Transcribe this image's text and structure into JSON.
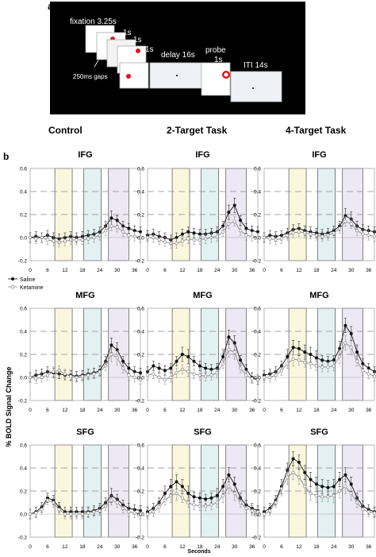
{
  "panel_a": {
    "letter": "a",
    "labels": {
      "fixation": "fixation 3.25s",
      "s1a": "1s",
      "s1b": "1s",
      "s1c": "1s",
      "delay": "delay 16s",
      "probe": "probe",
      "probe_s": "1s",
      "iti": "ITI 14s",
      "gaps": "250ms gaps"
    },
    "conditions": [
      "Control",
      "2-Target Task",
      "4-Target Task"
    ]
  },
  "panel_b": {
    "letter": "b",
    "ylabel": "% BOLD Signal Change",
    "xlabel": "Seconds",
    "legend": [
      "Saline",
      "Ketamine"
    ],
    "yticks": [
      "0.6",
      "0.4",
      "0.2",
      "0.0",
      "-0.2"
    ],
    "xticks": [
      "0",
      "6",
      "12",
      "18",
      "24",
      "30",
      "36"
    ],
    "colors": {
      "yellow": "#fbf7df",
      "teal": "#e3f1f2",
      "lavender": "#ece8f4",
      "saline": "#111111",
      "ketamine": "#888888"
    }
  },
  "chart_data": [
    {
      "type": "line",
      "title": "IFG",
      "column": "Control",
      "x": [
        0,
        2,
        4,
        6,
        8,
        10,
        12,
        14,
        16,
        18,
        20,
        22,
        24,
        26,
        28,
        30,
        32,
        34,
        36,
        38
      ],
      "ylim": [
        -0.2,
        0.6
      ],
      "series": [
        {
          "name": "Saline",
          "values": [
            0.0,
            0.01,
            0.0,
            0.02,
            0.0,
            -0.01,
            0.0,
            0.01,
            0.0,
            0.01,
            0.02,
            0.03,
            0.05,
            0.1,
            0.17,
            0.15,
            0.1,
            0.08,
            0.06,
            0.05
          ]
        },
        {
          "name": "Ketamine",
          "values": [
            0.0,
            -0.01,
            0.0,
            -0.02,
            -0.03,
            -0.04,
            -0.03,
            -0.02,
            -0.02,
            -0.02,
            -0.01,
            0.0,
            0.02,
            0.06,
            0.1,
            0.09,
            0.05,
            0.02,
            0.01,
            0.0
          ]
        }
      ]
    },
    {
      "type": "line",
      "title": "IFG",
      "column": "2-Target Task",
      "x": [
        0,
        2,
        4,
        6,
        8,
        10,
        12,
        14,
        16,
        18,
        20,
        22,
        24,
        26,
        28,
        30,
        32,
        34,
        36,
        38
      ],
      "ylim": [
        -0.2,
        0.6
      ],
      "series": [
        {
          "name": "Saline",
          "values": [
            0.02,
            0.03,
            0.01,
            0.0,
            -0.02,
            0.0,
            0.03,
            0.05,
            0.04,
            0.03,
            0.03,
            0.04,
            0.05,
            0.1,
            0.22,
            0.28,
            0.15,
            0.08,
            0.06,
            0.05
          ]
        },
        {
          "name": "Ketamine",
          "values": [
            0.0,
            0.0,
            -0.02,
            -0.04,
            -0.05,
            -0.05,
            -0.03,
            -0.01,
            -0.02,
            -0.02,
            -0.01,
            0.0,
            0.01,
            0.05,
            0.12,
            0.14,
            0.06,
            0.02,
            0.01,
            0.0
          ]
        }
      ]
    },
    {
      "type": "line",
      "title": "IFG",
      "column": "4-Target Task",
      "x": [
        0,
        2,
        4,
        6,
        8,
        10,
        12,
        14,
        16,
        18,
        20,
        22,
        24,
        26,
        28,
        30,
        32,
        34,
        36,
        38
      ],
      "ylim": [
        -0.2,
        0.6
      ],
      "series": [
        {
          "name": "Saline",
          "values": [
            0.0,
            0.02,
            0.01,
            0.02,
            0.04,
            0.07,
            0.08,
            0.06,
            0.05,
            0.04,
            0.03,
            0.04,
            0.06,
            0.1,
            0.19,
            0.16,
            0.1,
            0.07,
            0.06,
            0.05
          ]
        },
        {
          "name": "Ketamine",
          "values": [
            0.0,
            -0.01,
            -0.02,
            -0.01,
            0.02,
            0.04,
            0.05,
            0.04,
            0.03,
            0.02,
            0.01,
            0.02,
            0.04,
            0.08,
            0.14,
            0.12,
            0.06,
            0.03,
            0.02,
            0.01
          ]
        }
      ]
    },
    {
      "type": "line",
      "title": "MFG",
      "column": "Control",
      "x": [
        0,
        2,
        4,
        6,
        8,
        10,
        12,
        14,
        16,
        18,
        20,
        22,
        24,
        26,
        28,
        30,
        32,
        34,
        36,
        38
      ],
      "ylim": [
        -0.2,
        0.6
      ],
      "series": [
        {
          "name": "Saline",
          "values": [
            0.0,
            0.02,
            0.03,
            0.05,
            0.04,
            0.03,
            0.02,
            0.02,
            0.01,
            0.02,
            0.03,
            0.04,
            0.06,
            0.14,
            0.28,
            0.24,
            0.14,
            0.08,
            0.05,
            0.04
          ]
        },
        {
          "name": "Ketamine",
          "values": [
            0.0,
            -0.01,
            0.0,
            0.02,
            0.05,
            0.06,
            0.03,
            0.01,
            0.0,
            0.01,
            0.02,
            0.03,
            0.05,
            0.1,
            0.2,
            0.17,
            0.08,
            0.02,
            0.0,
            -0.02
          ]
        }
      ]
    },
    {
      "type": "line",
      "title": "MFG",
      "column": "2-Target Task",
      "x": [
        0,
        2,
        4,
        6,
        8,
        10,
        12,
        14,
        16,
        18,
        20,
        22,
        24,
        26,
        28,
        30,
        32,
        34,
        36,
        38
      ],
      "ylim": [
        -0.2,
        0.6
      ],
      "series": [
        {
          "name": "Saline",
          "values": [
            0.05,
            0.1,
            0.08,
            0.06,
            0.08,
            0.14,
            0.2,
            0.18,
            0.14,
            0.1,
            0.08,
            0.07,
            0.08,
            0.18,
            0.35,
            0.3,
            0.15,
            0.07,
            0.0,
            -0.02
          ]
        },
        {
          "name": "Ketamine",
          "values": [
            0.02,
            0.03,
            0.0,
            -0.02,
            0.0,
            0.04,
            0.07,
            0.05,
            0.03,
            0.02,
            0.01,
            0.02,
            0.04,
            0.12,
            0.24,
            0.22,
            0.08,
            0.02,
            -0.01,
            -0.02
          ]
        }
      ]
    },
    {
      "type": "line",
      "title": "MFG",
      "column": "4-Target Task",
      "x": [
        0,
        2,
        4,
        6,
        8,
        10,
        12,
        14,
        16,
        18,
        20,
        22,
        24,
        26,
        28,
        30,
        32,
        34,
        36,
        38
      ],
      "ylim": [
        -0.2,
        0.6
      ],
      "series": [
        {
          "name": "Saline",
          "values": [
            0.02,
            0.03,
            0.05,
            0.1,
            0.18,
            0.26,
            0.25,
            0.22,
            0.2,
            0.17,
            0.15,
            0.14,
            0.15,
            0.25,
            0.45,
            0.38,
            0.22,
            0.12,
            0.08,
            0.05
          ]
        },
        {
          "name": "Ketamine",
          "values": [
            0.0,
            0.0,
            0.02,
            0.06,
            0.12,
            0.16,
            0.15,
            0.13,
            0.12,
            0.1,
            0.09,
            0.09,
            0.1,
            0.18,
            0.3,
            0.26,
            0.14,
            0.06,
            0.03,
            0.01
          ]
        }
      ]
    },
    {
      "type": "line",
      "title": "SFG",
      "column": "Control",
      "x": [
        0,
        2,
        4,
        6,
        8,
        10,
        12,
        14,
        16,
        18,
        20,
        22,
        24,
        26,
        28,
        30,
        32,
        34,
        36,
        38
      ],
      "ylim": [
        -0.2,
        0.6
      ],
      "series": [
        {
          "name": "Saline",
          "values": [
            0.0,
            0.02,
            0.06,
            0.14,
            0.12,
            0.06,
            0.02,
            0.02,
            0.02,
            0.02,
            0.02,
            0.03,
            0.05,
            0.1,
            0.16,
            0.13,
            0.08,
            0.05,
            0.04,
            0.03
          ]
        },
        {
          "name": "Ketamine",
          "values": [
            0.0,
            0.01,
            0.04,
            0.12,
            0.1,
            0.04,
            0.0,
            0.0,
            0.0,
            0.0,
            0.01,
            0.02,
            0.03,
            0.07,
            0.12,
            0.1,
            0.05,
            0.02,
            0.01,
            0.0
          ]
        }
      ]
    },
    {
      "type": "line",
      "title": "SFG",
      "column": "2-Target Task",
      "x": [
        0,
        2,
        4,
        6,
        8,
        10,
        12,
        14,
        16,
        18,
        20,
        22,
        24,
        26,
        28,
        30,
        32,
        34,
        36,
        38
      ],
      "ylim": [
        -0.2,
        0.6
      ],
      "series": [
        {
          "name": "Saline",
          "values": [
            0.02,
            0.05,
            0.1,
            0.18,
            0.24,
            0.28,
            0.24,
            0.18,
            0.15,
            0.14,
            0.13,
            0.14,
            0.16,
            0.24,
            0.34,
            0.26,
            0.14,
            0.08,
            0.05,
            0.03
          ]
        },
        {
          "name": "Ketamine",
          "values": [
            0.0,
            0.02,
            0.06,
            0.12,
            0.16,
            0.18,
            0.14,
            0.1,
            0.08,
            0.07,
            0.07,
            0.08,
            0.1,
            0.16,
            0.24,
            0.18,
            0.1,
            0.05,
            0.03,
            0.02
          ]
        }
      ]
    },
    {
      "type": "line",
      "title": "SFG",
      "column": "4-Target Task",
      "x": [
        0,
        2,
        4,
        6,
        8,
        10,
        12,
        14,
        16,
        18,
        20,
        22,
        24,
        26,
        28,
        30,
        32,
        34,
        36,
        38
      ],
      "ylim": [
        -0.2,
        0.6
      ],
      "series": [
        {
          "name": "Saline",
          "values": [
            0.02,
            0.05,
            0.12,
            0.24,
            0.38,
            0.48,
            0.45,
            0.36,
            0.3,
            0.26,
            0.24,
            0.23,
            0.24,
            0.3,
            0.34,
            0.26,
            0.14,
            0.07,
            0.04,
            0.02
          ]
        },
        {
          "name": "Ketamine",
          "values": [
            0.0,
            0.03,
            0.1,
            0.22,
            0.32,
            0.36,
            0.32,
            0.24,
            0.18,
            0.16,
            0.15,
            0.15,
            0.16,
            0.2,
            0.24,
            0.18,
            0.1,
            0.04,
            0.02,
            0.01
          ]
        }
      ]
    }
  ]
}
